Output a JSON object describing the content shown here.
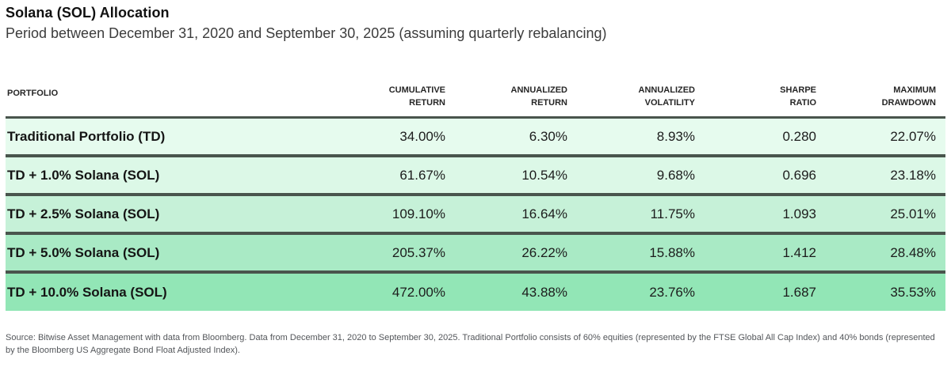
{
  "header": {
    "title": "Solana (SOL) Allocation",
    "subtitle": "Period between December 31, 2020 and September 30, 2025 (assuming quarterly rebalancing)"
  },
  "table": {
    "headers": {
      "portfolio": "PORTFOLIO",
      "cumulative_return": "CUMULATIVE\nRETURN",
      "annualized_return": "ANNUALIZED\nRETURN",
      "annualized_volatility": "ANNUALIZED\nVOLATILITY",
      "sharpe_ratio": "SHARPE\nRATIO",
      "maximum_drawdown": "MAXIMUM\nDRAWDOWN"
    },
    "row_colors": [
      "#e6fbee",
      "#dcf8e7",
      "#c6f1d8",
      "#a9eac5",
      "#92e6b6"
    ],
    "separator_color": "#49554d",
    "rows": [
      {
        "portfolio": "Traditional Portfolio (TD)",
        "cumulative_return": "34.00%",
        "annualized_return": "6.30%",
        "annualized_volatility": "8.93%",
        "sharpe_ratio": "0.280",
        "maximum_drawdown": "22.07%"
      },
      {
        "portfolio": "TD + 1.0% Solana (SOL)",
        "cumulative_return": "61.67%",
        "annualized_return": "10.54%",
        "annualized_volatility": "9.68%",
        "sharpe_ratio": "0.696",
        "maximum_drawdown": "23.18%"
      },
      {
        "portfolio": "TD + 2.5% Solana (SOL)",
        "cumulative_return": "109.10%",
        "annualized_return": "16.64%",
        "annualized_volatility": "11.75%",
        "sharpe_ratio": "1.093",
        "maximum_drawdown": "25.01%"
      },
      {
        "portfolio": "TD + 5.0% Solana (SOL)",
        "cumulative_return": "205.37%",
        "annualized_return": "26.22%",
        "annualized_volatility": "15.88%",
        "sharpe_ratio": "1.412",
        "maximum_drawdown": "28.48%"
      },
      {
        "portfolio": "TD + 10.0% Solana (SOL)",
        "cumulative_return": "472.00%",
        "annualized_return": "43.88%",
        "annualized_volatility": "23.76%",
        "sharpe_ratio": "1.687",
        "maximum_drawdown": "35.53%"
      }
    ]
  },
  "footer": {
    "source": "Source: Bitwise Asset Management with data from Bloomberg. Data from December 31, 2020 to September 30, 2025. Traditional Portfolio consists of 60% equities (represented by the FTSE Global All Cap Index) and 40% bonds (represented by the Bloomberg US Aggregate Bond Float Adjusted Index)."
  },
  "chart_data": {
    "type": "table",
    "title": "Solana (SOL) Allocation",
    "subtitle": "Period between December 31, 2020 and September 30, 2025 (assuming quarterly rebalancing)",
    "columns": [
      "Portfolio",
      "Cumulative Return",
      "Annualized Return",
      "Annualized Volatility",
      "Sharpe Ratio",
      "Maximum Drawdown"
    ],
    "rows": [
      [
        "Traditional Portfolio (TD)",
        "34.00%",
        "6.30%",
        "8.93%",
        "0.280",
        "22.07%"
      ],
      [
        "TD + 1.0% Solana (SOL)",
        "61.67%",
        "10.54%",
        "9.68%",
        "0.696",
        "23.18%"
      ],
      [
        "TD + 2.5% Solana (SOL)",
        "109.10%",
        "16.64%",
        "11.75%",
        "1.093",
        "25.01%"
      ],
      [
        "TD + 5.0% Solana (SOL)",
        "205.37%",
        "26.22%",
        "15.88%",
        "1.412",
        "28.48%"
      ],
      [
        "TD + 10.0% Solana (SOL)",
        "472.00%",
        "43.88%",
        "23.76%",
        "1.687",
        "35.53%"
      ]
    ],
    "numeric_values": {
      "cumulative_return_pct": [
        34.0,
        61.67,
        109.1,
        205.37,
        472.0
      ],
      "annualized_return_pct": [
        6.3,
        10.54,
        16.64,
        26.22,
        43.88
      ],
      "annualized_volatility_pct": [
        8.93,
        9.68,
        11.75,
        15.88,
        23.76
      ],
      "sharpe_ratio": [
        0.28,
        0.696,
        1.093,
        1.412,
        1.687
      ],
      "maximum_drawdown_pct": [
        22.07,
        23.18,
        25.01,
        28.48,
        35.53
      ]
    },
    "source_note": "Source: Bitwise Asset Management with data from Bloomberg. Data from December 31, 2020 to September 30, 2025. Traditional Portfolio consists of 60% equities (represented by the FTSE Global All Cap Index) and 40% bonds (represented by the Bloomberg US Aggregate Bond Float Adjusted Index)."
  }
}
